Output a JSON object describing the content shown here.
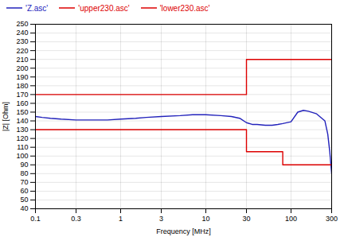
{
  "chart_data": {
    "type": "line",
    "xlabel": "Frequency [MHz]",
    "ylabel": "|Z| [Ohm]",
    "log": "x",
    "xlim": [
      0.1,
      300
    ],
    "xticks": [
      0.1,
      0.3,
      1,
      3,
      10,
      30,
      100,
      300
    ],
    "ylim": [
      40,
      250
    ],
    "yticks": [
      40,
      50,
      60,
      70,
      80,
      90,
      100,
      110,
      120,
      130,
      140,
      150,
      160,
      170,
      180,
      190,
      200,
      210,
      220,
      230,
      240,
      250
    ],
    "grid": true,
    "legend": "upper left",
    "series": [
      {
        "name": "'Z.asc'",
        "color": "#2222bb",
        "x": [
          0.1,
          0.12,
          0.15,
          0.2,
          0.3,
          0.5,
          0.7,
          1.0,
          1.5,
          2.0,
          3.0,
          5.0,
          7.0,
          10.0,
          15.0,
          20.0,
          25.0,
          30.0,
          35.0,
          40.0,
          50.0,
          60.0,
          70.0,
          80.0,
          100.0,
          120.0,
          140.0,
          160.0,
          200.0,
          230.0,
          250.0,
          270.0,
          285.0,
          295.0,
          300.0
        ],
        "values": [
          145,
          144,
          143,
          142,
          141,
          141,
          141,
          142,
          143,
          144,
          145,
          146,
          147,
          147,
          146,
          145,
          143,
          138,
          136,
          136,
          135,
          135,
          136,
          137,
          139,
          150,
          152,
          151,
          148,
          143,
          140,
          125,
          105,
          88,
          80
        ]
      },
      {
        "name": "'upper230.asc'",
        "color": "#dd0000",
        "x": [
          0.1,
          30,
          30,
          300
        ],
        "values": [
          170,
          170,
          210,
          210
        ]
      },
      {
        "name": "'lower230.asc'",
        "color": "#dd0000",
        "x": [
          0.1,
          30,
          30,
          80,
          80,
          300
        ],
        "values": [
          130,
          130,
          105,
          105,
          90,
          90
        ]
      }
    ]
  }
}
